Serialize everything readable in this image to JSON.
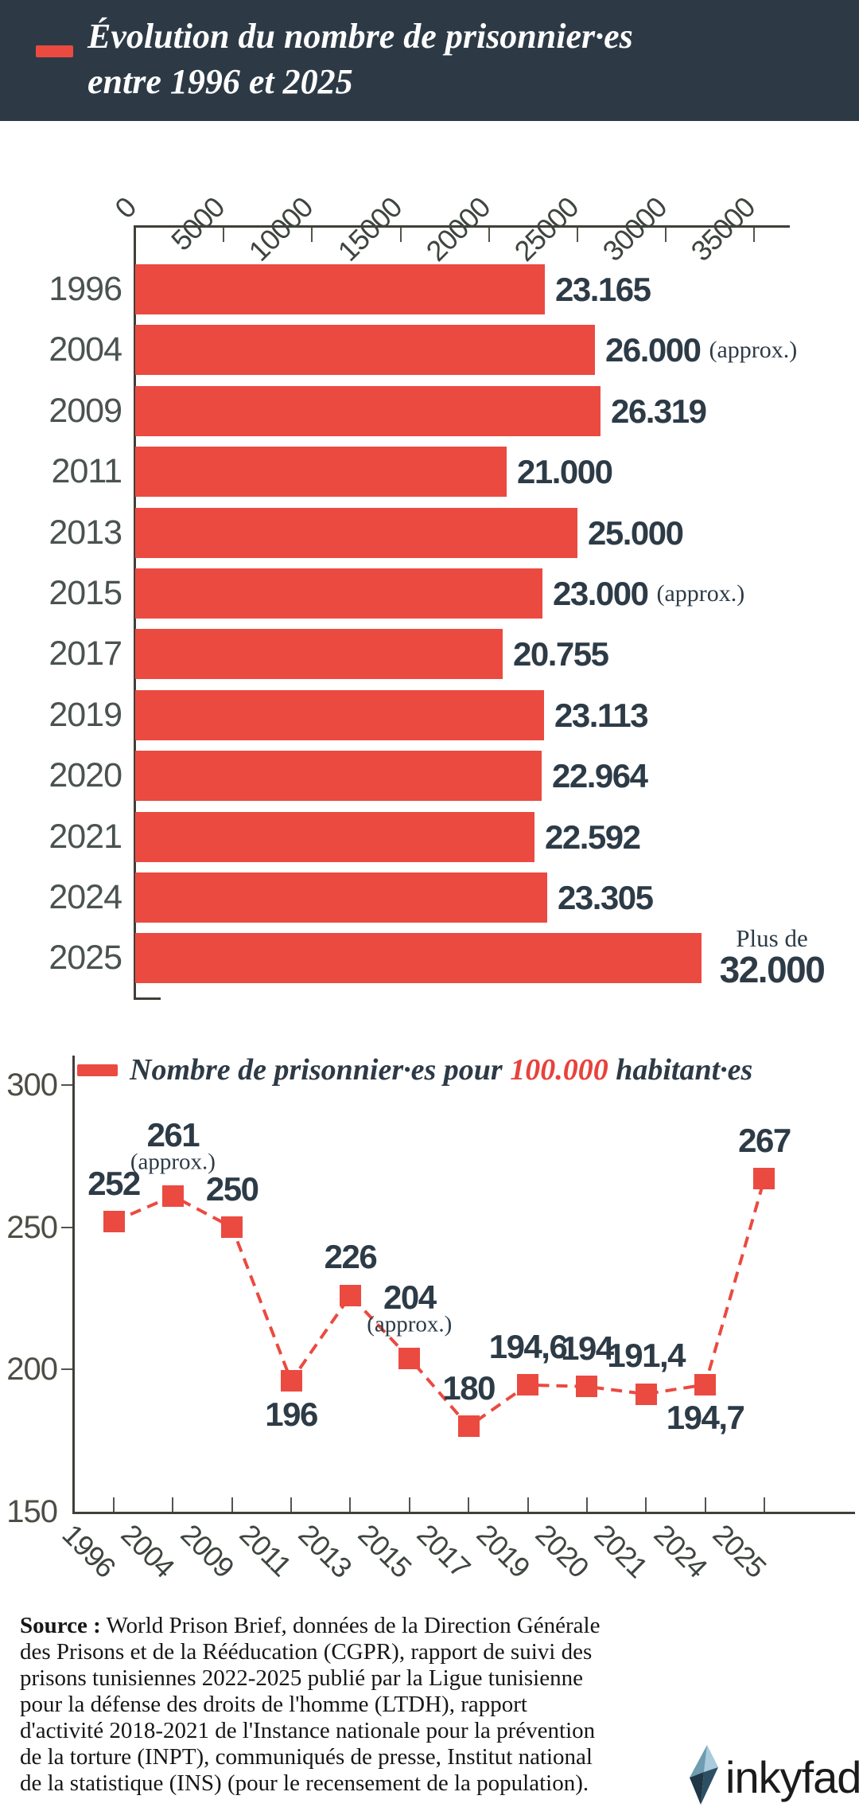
{
  "header": {
    "title_line1": "Évolution du nombre de prisonnier·es",
    "title_line2": "entre 1996 et 2025"
  },
  "bar_chart": {
    "x_tick_labels": [
      "0",
      "5000",
      "10000",
      "15000",
      "20000",
      "25000",
      "30000",
      "35000"
    ],
    "rows": [
      {
        "year": "1996",
        "label": "23.165"
      },
      {
        "year": "2004",
        "label": "26.000",
        "approx": "(approx.)"
      },
      {
        "year": "2009",
        "label": "26.319"
      },
      {
        "year": "2011",
        "label": "21.000"
      },
      {
        "year": "2013",
        "label": "25.000"
      },
      {
        "year": "2015",
        "label": "23.000",
        "approx": "(approx.)"
      },
      {
        "year": "2017",
        "label": "20.755"
      },
      {
        "year": "2019",
        "label": "23.113"
      },
      {
        "year": "2020",
        "label": "22.964"
      },
      {
        "year": "2021",
        "label": "22.592"
      },
      {
        "year": "2024",
        "label": "23.305"
      },
      {
        "year": "2025",
        "label": "32.000",
        "prefix": "Plus de"
      }
    ]
  },
  "line_chart": {
    "legend": {
      "prefix": "Nombre de prisonnier·es pour ",
      "highlight": "100.000",
      "suffix": " habitant·es"
    },
    "y_tick_labels": [
      "300",
      "250",
      "200",
      "150"
    ],
    "x_labels": [
      "1996",
      "2004",
      "2009",
      "2011",
      "2013",
      "2015",
      "2017",
      "2019",
      "2020",
      "2021",
      "2024",
      "2025"
    ],
    "points": [
      {
        "label": "252",
        "pos": "above"
      },
      {
        "label": "261",
        "sub": "(approx.)",
        "pos": "above"
      },
      {
        "label": "250",
        "pos": "above"
      },
      {
        "label": "196",
        "pos": "below"
      },
      {
        "label": "226",
        "pos": "above"
      },
      {
        "label": "204",
        "sub": "(approx.)",
        "pos": "above"
      },
      {
        "label": "180",
        "pos": "above"
      },
      {
        "label": "194,6",
        "pos": "above"
      },
      {
        "label": "194",
        "pos": "above"
      },
      {
        "label": "191,4",
        "pos": "above"
      },
      {
        "label": "194,7",
        "pos": "below"
      },
      {
        "label": "267",
        "pos": "above"
      }
    ]
  },
  "source": {
    "label": "Source :",
    "lines": [
      " World Prison Brief, données de la Direction Générale",
      "des Prisons et de la Rééducation (CGPR), rapport de suivi des",
      "prisons tunisiennes 2022-2025 publié par la Ligue tunisienne",
      "pour la défense des droits de l'homme (LTDH), rapport",
      "d'activité 2018-2021 de l'Instance nationale pour la prévention",
      "de la torture (INPT), communiqués de presse, Institut national",
      "de la statistique (INS) (pour le recensement de la population)."
    ]
  },
  "logo": {
    "text": "inkyfada"
  },
  "colors": {
    "accent": "#EB4A41",
    "header_bg": "#2D3A46",
    "legend_highlight": "#E8423C"
  },
  "chart_data": [
    {
      "type": "bar",
      "orientation": "horizontal",
      "title": "Évolution du nombre de prisonnier·es entre 1996 et 2025",
      "categories": [
        "1996",
        "2004",
        "2009",
        "2011",
        "2013",
        "2015",
        "2017",
        "2019",
        "2020",
        "2021",
        "2024",
        "2025"
      ],
      "values": [
        23165,
        26000,
        26319,
        21000,
        25000,
        23000,
        20755,
        23113,
        22964,
        22592,
        23305,
        32000
      ],
      "value_labels": [
        "23.165",
        "26.000 (approx.)",
        "26.319",
        "21.000",
        "25.000",
        "23.000 (approx.)",
        "20.755",
        "23.113",
        "22.964",
        "22.592",
        "23.305",
        "Plus de 32.000"
      ],
      "xlabel": "",
      "ylabel": "",
      "xlim": [
        0,
        37000
      ],
      "x_ticks": [
        0,
        5000,
        10000,
        15000,
        20000,
        25000,
        30000,
        35000
      ],
      "axis_position": "top",
      "grid": false
    },
    {
      "type": "line",
      "title": "Nombre de prisonnier·es pour 100.000 habitant·es",
      "x": [
        "1996",
        "2004",
        "2009",
        "2011",
        "2013",
        "2015",
        "2017",
        "2019",
        "2020",
        "2021",
        "2024",
        "2025"
      ],
      "values": [
        252,
        261,
        250,
        196,
        226,
        204,
        180,
        194.6,
        194,
        191.4,
        194.7,
        267
      ],
      "point_labels": [
        "252",
        "261 (approx.)",
        "250",
        "196",
        "226",
        "204 (approx.)",
        "180",
        "194,6",
        "194",
        "191,4",
        "194,7",
        "267"
      ],
      "ylim": [
        150,
        300
      ],
      "y_ticks": [
        300,
        250,
        200,
        150
      ],
      "line_style": "dashed",
      "marker": "square",
      "legend_position": "top",
      "grid": false
    }
  ]
}
